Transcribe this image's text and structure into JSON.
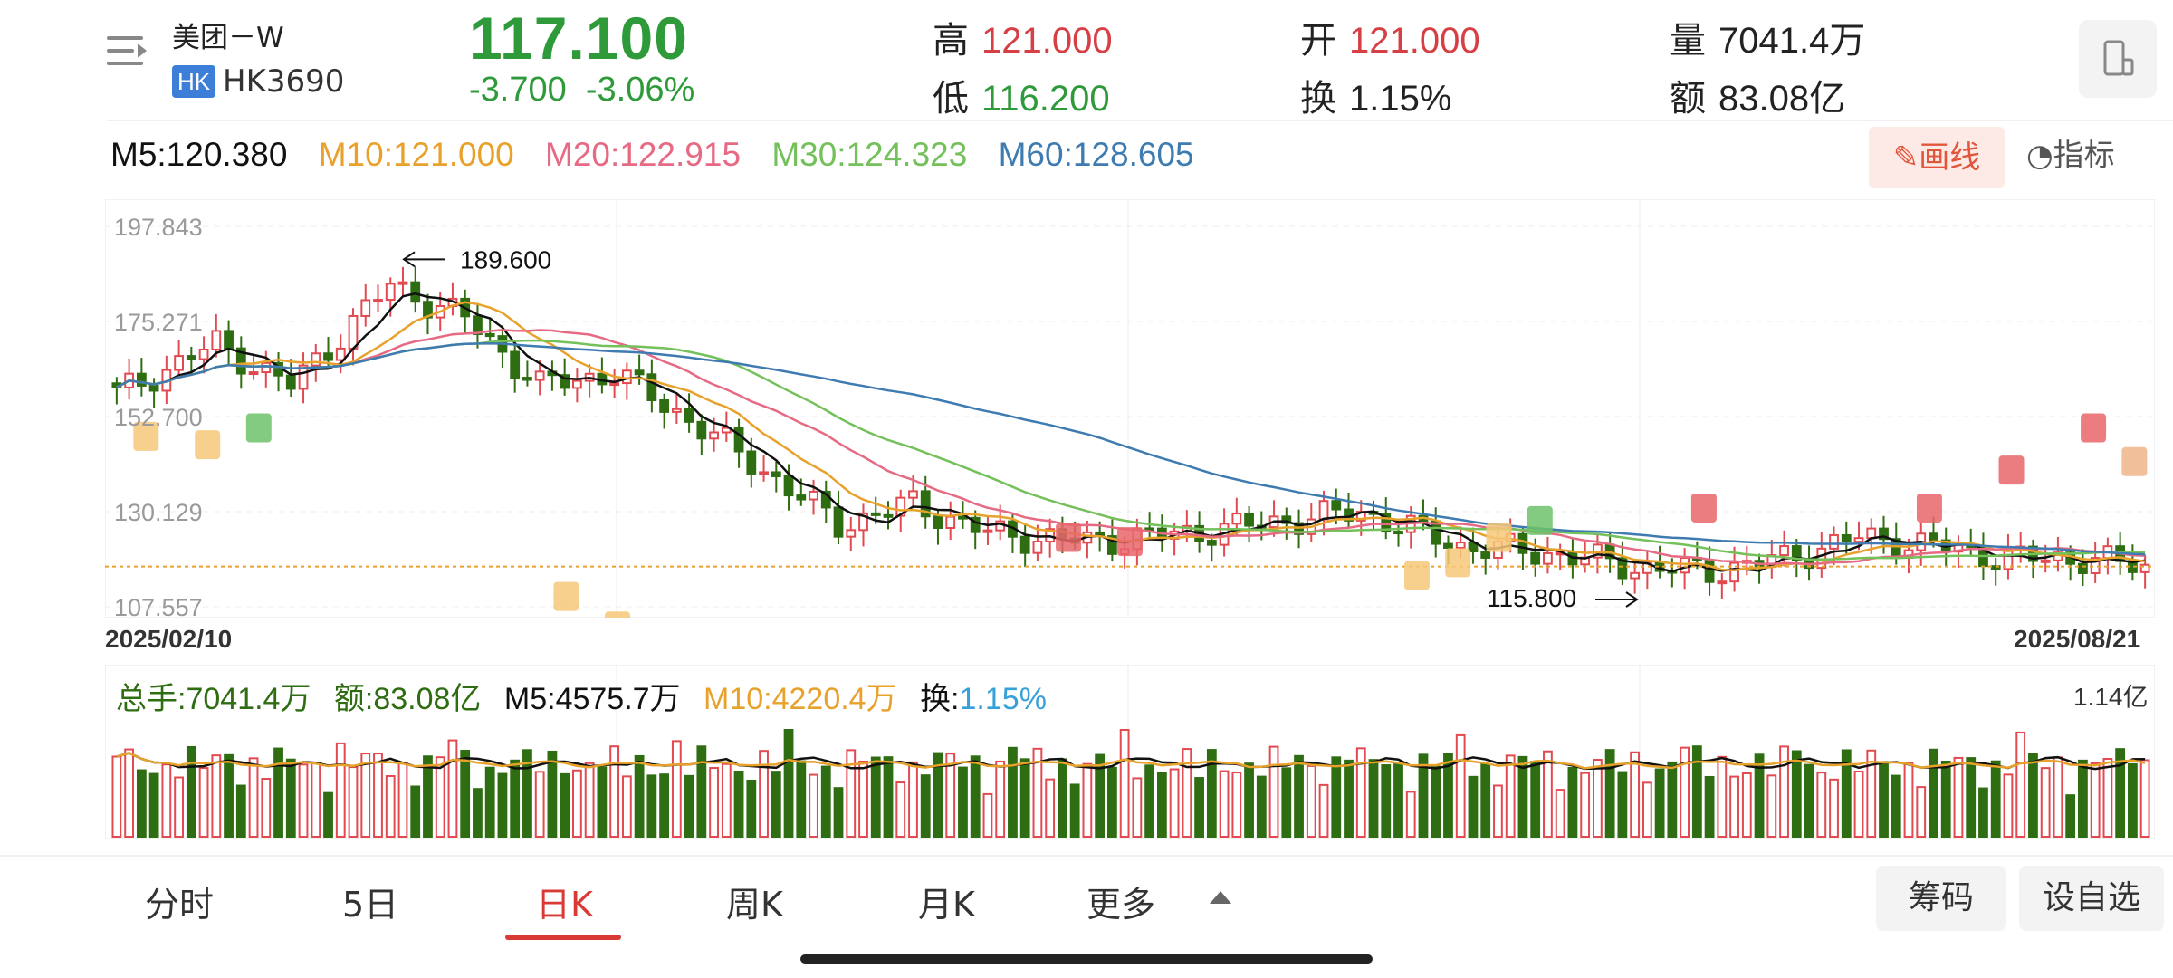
{
  "header": {
    "name": "美团－W",
    "market_badge": "HK",
    "code": "HK3690",
    "price": "117.100",
    "change": "-3.700",
    "change_pct": "-3.06%",
    "high_label": "高",
    "high": "121.000",
    "low_label": "低",
    "low": "116.200",
    "open_label": "开",
    "open": "121.000",
    "turnover_label": "换",
    "turnover": "1.15%",
    "volume_label": "量",
    "volume": "7041.4万",
    "amount_label": "额",
    "amount": "83.08亿"
  },
  "ma": {
    "m5": "M5:120.380",
    "m10": "M10:121.000",
    "m20": "M20:122.915",
    "m30": "M30:124.323",
    "m60": "M60:128.605"
  },
  "tools": {
    "draw": "画线",
    "indicator": "指标"
  },
  "chart_data": {
    "type": "candlestick",
    "y_ticks": [
      "197.843",
      "175.271",
      "152.700",
      "130.129",
      "107.557"
    ],
    "ylim": [
      107.557,
      197.843
    ],
    "high_marker": "189.600",
    "low_marker": "115.800",
    "current_price_line": 117.1,
    "date_start": "2025/02/10",
    "date_end": "2025/08/21",
    "grid": true,
    "colors": {
      "up": "#e04a50",
      "down": "#2f6d12",
      "ma5": "#111111",
      "ma10": "#e8a22c",
      "ma20": "#e66a84",
      "ma30": "#74c05a",
      "ma60": "#3e7bb0"
    }
  },
  "volume": {
    "total": "总手:7041.4万",
    "amount": "额:83.08亿",
    "m5": "M5:4575.7万",
    "m10": "M10:4220.4万",
    "turnover_label": "换:",
    "turnover": "1.15%",
    "max_label": "1.14亿"
  },
  "tabs": [
    "分时",
    "5日",
    "日K",
    "周K",
    "月K",
    "更多"
  ],
  "buttons": {
    "chips": "筹码",
    "watchlist": "设自选"
  }
}
